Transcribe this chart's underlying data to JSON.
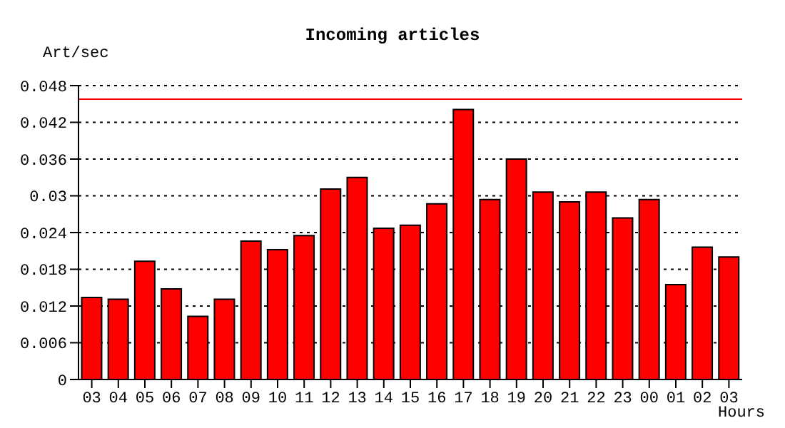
{
  "chart_data": {
    "type": "bar",
    "title": "Incoming articles",
    "ylabel": "Art/sec",
    "xlabel": "Hours",
    "categories": [
      "03",
      "04",
      "05",
      "06",
      "07",
      "08",
      "09",
      "10",
      "11",
      "12",
      "13",
      "14",
      "15",
      "16",
      "17",
      "18",
      "19",
      "20",
      "21",
      "22",
      "23",
      "00",
      "01",
      "02",
      "03"
    ],
    "series": [
      {
        "color": "#ff0000",
        "values": [
          0.0134,
          0.0131,
          0.0193,
          0.0148,
          0.0103,
          0.0131,
          0.0226,
          0.0212,
          0.0235,
          0.0311,
          0.033,
          0.0247,
          0.0252,
          0.0287,
          0.0441,
          0.0294,
          0.036,
          0.0306,
          0.029,
          0.0306,
          0.0264,
          0.0294,
          0.0155,
          0.0216,
          0.02
        ]
      }
    ],
    "ylim": [
      0,
      0.048
    ],
    "yticks": [
      0,
      0.006,
      0.012,
      0.018,
      0.024,
      0.03,
      0.036,
      0.042,
      0.048
    ],
    "ref_lines": [
      {
        "axis": "y",
        "value": 0.0458,
        "color": "#ff0000"
      }
    ],
    "grid": "y",
    "legend": false
  }
}
